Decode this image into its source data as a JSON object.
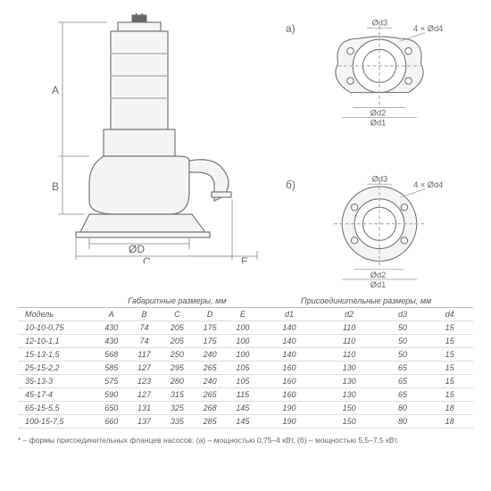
{
  "headings": {
    "gabarit": "Габаритные размеры, мм",
    "prisoed": "Присоединительные размеры, мм",
    "model": "Модель"
  },
  "cols": [
    "A",
    "B",
    "C",
    "D",
    "E",
    "d1",
    "d2",
    "d3",
    "d4"
  ],
  "diagram_labels": {
    "a": "а)",
    "b": "б)",
    "d1": "Ød1",
    "d2": "Ød2",
    "d3": "Ød3",
    "d4": "4 × Ød4",
    "A": "A",
    "B": "B",
    "C": "C",
    "D": "ØD",
    "E": "E"
  },
  "rows": [
    {
      "model": "10-10-0,75",
      "A": 430,
      "B": 74,
      "C": 205,
      "D": 175,
      "E": 100,
      "d1": 140,
      "d2": 110,
      "d3": 50,
      "d4": 15
    },
    {
      "model": "12-10-1,1",
      "A": 430,
      "B": 74,
      "C": 205,
      "D": 175,
      "E": 100,
      "d1": 140,
      "d2": 110,
      "d3": 50,
      "d4": 15
    },
    {
      "model": "15-13-1,5",
      "A": 568,
      "B": 117,
      "C": 250,
      "D": 240,
      "E": 100,
      "d1": 140,
      "d2": 110,
      "d3": 50,
      "d4": 15
    },
    {
      "model": "25-15-2,2",
      "A": 585,
      "B": 127,
      "C": 295,
      "D": 265,
      "E": 105,
      "d1": 160,
      "d2": 130,
      "d3": 65,
      "d4": 15
    },
    {
      "model": "35-13-3",
      "A": 575,
      "B": 123,
      "C": 280,
      "D": 240,
      "E": 105,
      "d1": 160,
      "d2": 130,
      "d3": 65,
      "d4": 15
    },
    {
      "model": "45-17-4",
      "A": 590,
      "B": 127,
      "C": 315,
      "D": 265,
      "E": 115,
      "d1": 160,
      "d2": 130,
      "d3": 65,
      "d4": 15
    },
    {
      "model": "65-15-5,5",
      "A": 650,
      "B": 131,
      "C": 325,
      "D": 268,
      "E": 145,
      "d1": 190,
      "d2": 150,
      "d3": 80,
      "d4": 18
    },
    {
      "model": "100-15-7,5",
      "A": 660,
      "B": 137,
      "C": 335,
      "D": 285,
      "E": 145,
      "d1": 190,
      "d2": 150,
      "d3": 80,
      "d4": 18
    }
  ],
  "footnote": "* – формы присоединительных фланцев насосов: (а) – мощностью 0,75–4 кВт, (б) – мощностью 5,5–7,5 кВт.",
  "colors": {
    "line": "#777777",
    "fill": "#f4f4f4",
    "hatch": "#bfbfbf"
  }
}
